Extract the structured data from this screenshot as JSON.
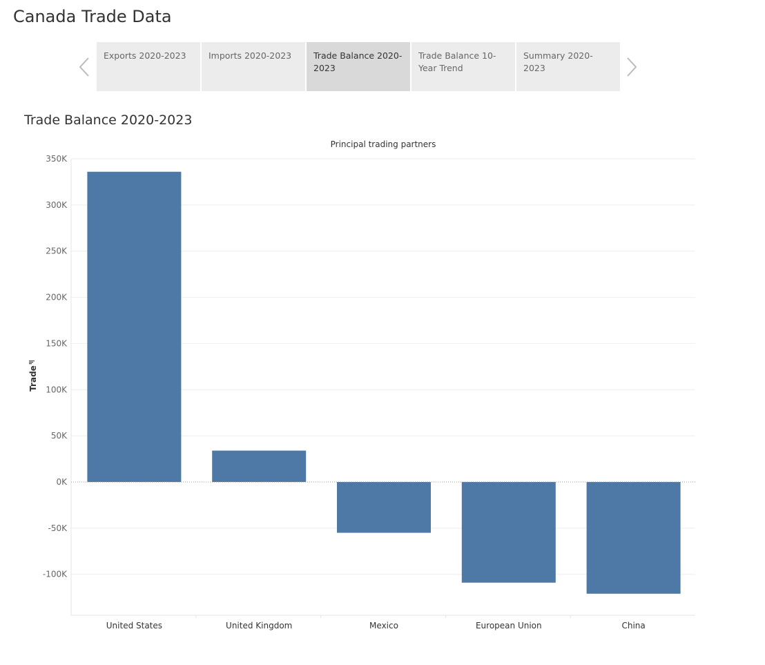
{
  "app": {
    "title": "Canada Trade Data"
  },
  "story": {
    "tabs": [
      {
        "label": "Exports 2020-2023",
        "active": false
      },
      {
        "label": "Imports 2020-2023",
        "active": false
      },
      {
        "label": "Trade Balance 2020-2023",
        "active": true
      },
      {
        "label": "Trade Balance 10-Year Trend",
        "active": false
      },
      {
        "label": "Summary 2020-2023",
        "active": false
      }
    ]
  },
  "sheet": {
    "title": "Trade Balance 2020-2023"
  },
  "chart_data": {
    "type": "bar",
    "title": "Principal trading partners",
    "xlabel": "",
    "ylabel": "Trade",
    "categories": [
      "United States",
      "United Kingdom",
      "Mexico",
      "European Union",
      "China"
    ],
    "values": [
      336000,
      34000,
      -55000,
      -109000,
      -121000
    ],
    "ylim": [
      -145000,
      350000
    ],
    "yticks": [
      350000,
      300000,
      250000,
      200000,
      150000,
      100000,
      50000,
      0,
      -50000,
      -100000
    ],
    "ytick_labels": [
      "350K",
      "300K",
      "250K",
      "200K",
      "150K",
      "100K",
      "50K",
      "0K",
      "-50K",
      "-100K"
    ],
    "bar_color": "#4e79a7",
    "grid": true
  }
}
